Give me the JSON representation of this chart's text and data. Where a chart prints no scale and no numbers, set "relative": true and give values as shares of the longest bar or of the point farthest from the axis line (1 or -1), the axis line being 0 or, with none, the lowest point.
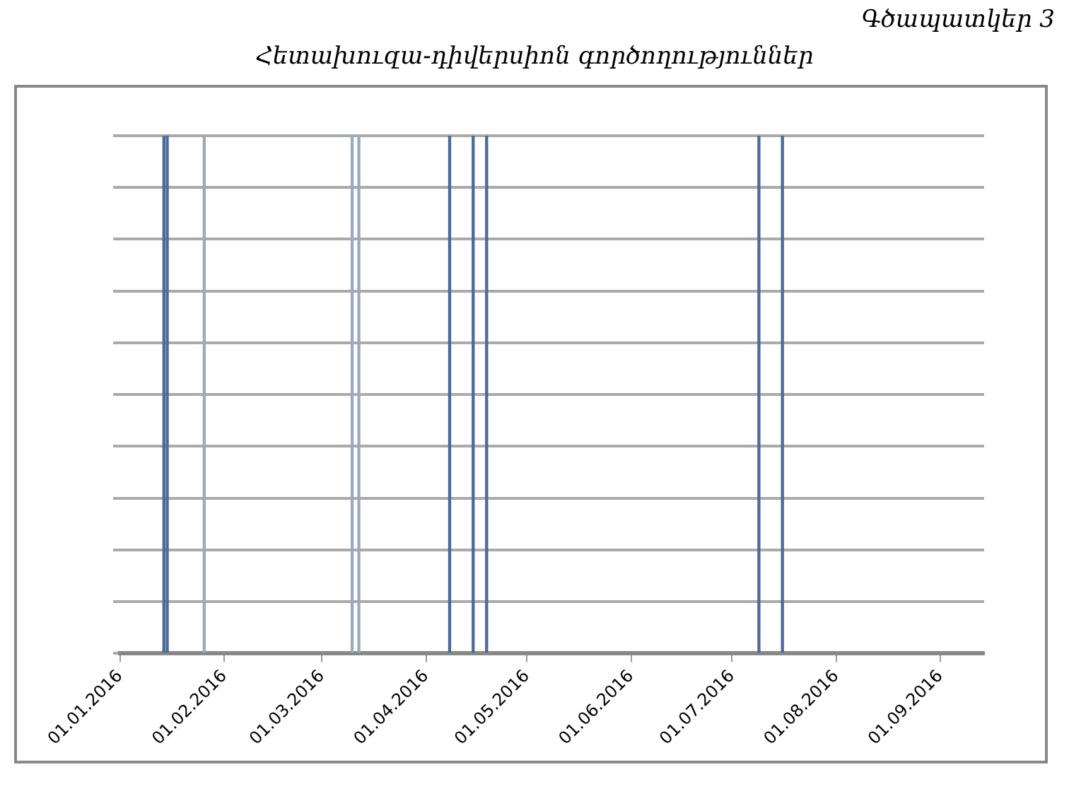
{
  "chart_data": {
    "type": "bar",
    "title": "Հետախուզա-դիվերսիոն գործողություններ",
    "annotations": [
      "Գծապատկեր 3"
    ],
    "x": [
      "2016-01-14",
      "2016-01-15",
      "2016-01-26",
      "2016-03-10",
      "2016-03-12",
      "2016-04-08",
      "2016-04-15",
      "2016-04-19",
      "2016-07-09",
      "2016-07-16"
    ],
    "values": [
      1,
      1,
      1,
      1,
      1,
      1,
      1,
      1,
      1,
      1
    ],
    "colors": [
      "#4a6a9c",
      "#4a6a9c",
      "#9aaabf",
      "#9aaabf",
      "#9aaabf",
      "#4a6a9c",
      "#4a6a9c",
      "#4a6a9c",
      "#4a6a9c",
      "#4a6a9c"
    ],
    "relative": true,
    "xlim": [
      "2016-01-01",
      "2016-09-14"
    ],
    "xticks": [
      {
        "value": "2016-01-01",
        "label": "01.01.2016"
      },
      {
        "value": "2016-02-01",
        "label": "01.02.2016"
      },
      {
        "value": "2016-03-01",
        "label": "01.03.2016"
      },
      {
        "value": "2016-04-01",
        "label": "01.04.2016"
      },
      {
        "value": "2016-05-01",
        "label": "01.05.2016"
      },
      {
        "value": "2016-06-01",
        "label": "01.06.2016"
      },
      {
        "value": "2016-07-01",
        "label": "01.07.2016"
      },
      {
        "value": "2016-08-01",
        "label": "01.08.2016"
      },
      {
        "value": "2016-09-01",
        "label": "01.09.2016"
      }
    ],
    "grid": "y",
    "legend": false
  }
}
